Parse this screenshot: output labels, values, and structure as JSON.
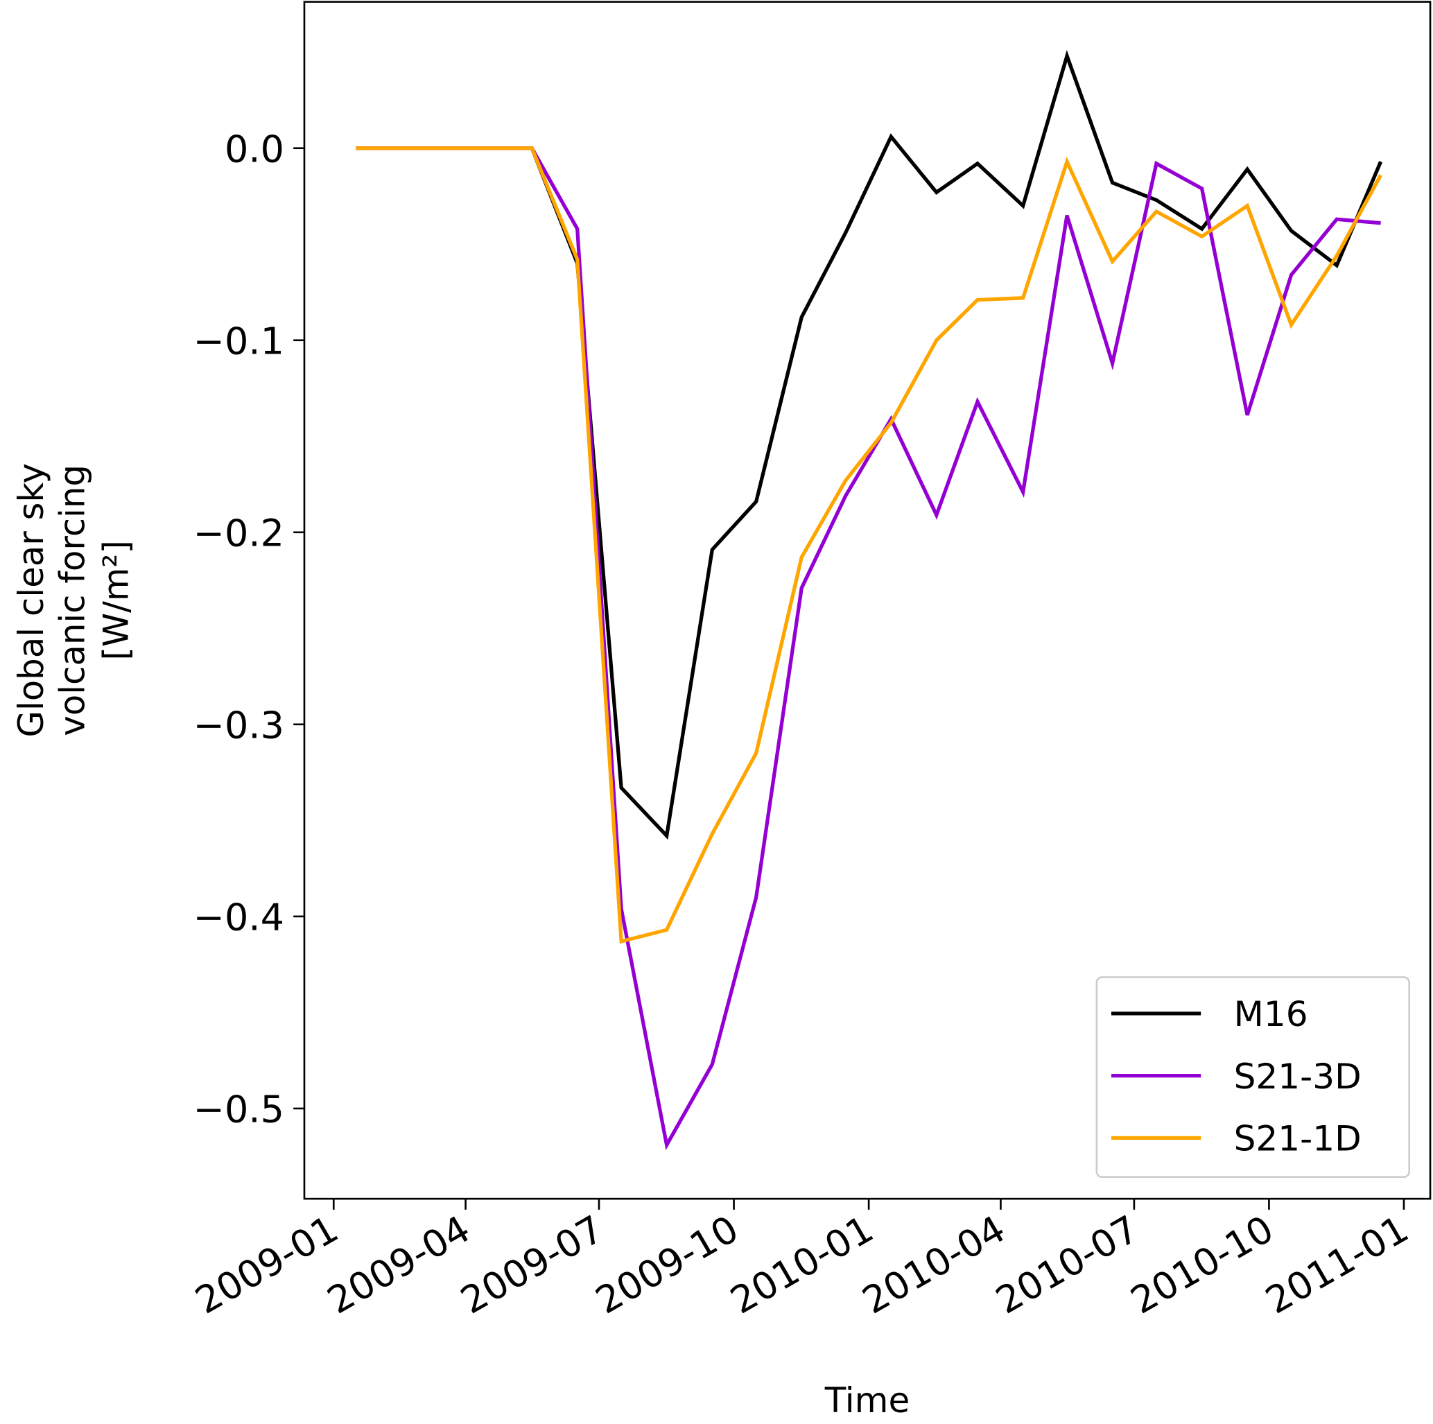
{
  "chart_data": {
    "type": "line",
    "xlabel": "Time",
    "ylabel": [
      "Global clear sky",
      "volcanic forcing",
      "[W/m²]"
    ],
    "x": [
      "2009-01",
      "2009-02",
      "2009-03",
      "2009-04",
      "2009-05",
      "2009-06",
      "2009-07",
      "2009-08",
      "2009-09",
      "2009-10",
      "2009-11",
      "2009-12",
      "2010-01",
      "2010-02",
      "2010-03",
      "2010-04",
      "2010-05",
      "2010-06",
      "2010-07",
      "2010-08",
      "2010-09",
      "2010-10",
      "2010-11",
      "2010-12"
    ],
    "series": [
      {
        "name": "M16",
        "color": "#000000",
        "values": [
          0,
          0,
          0,
          0,
          0,
          -0.06,
          -0.333,
          -0.358,
          -0.209,
          -0.184,
          -0.088,
          -0.044,
          0.006,
          -0.023,
          -0.008,
          -0.03,
          0.048,
          -0.018,
          -0.027,
          -0.042,
          -0.011,
          -0.043,
          -0.061,
          -0.007
        ]
      },
      {
        "name": "S21-3D",
        "color": "#9400d3",
        "values": [
          0,
          0,
          0,
          0,
          0,
          -0.042,
          -0.396,
          -0.519,
          -0.477,
          -0.39,
          -0.229,
          -0.181,
          -0.141,
          -0.191,
          -0.132,
          -0.179,
          -0.035,
          -0.112,
          -0.008,
          -0.021,
          -0.139,
          -0.066,
          -0.037,
          -0.039
        ]
      },
      {
        "name": "S21-1D",
        "color": "#ffa500",
        "values": [
          0,
          0,
          0,
          0,
          0,
          -0.058,
          -0.413,
          -0.407,
          -0.357,
          -0.315,
          -0.213,
          -0.173,
          -0.143,
          -0.1,
          -0.079,
          -0.078,
          -0.007,
          -0.059,
          -0.033,
          -0.046,
          -0.03,
          -0.092,
          -0.056,
          -0.014
        ]
      }
    ],
    "xlim": [
      "2008-12-12",
      "2011-01-19"
    ],
    "xticks": [
      "2009-01",
      "2009-04",
      "2009-07",
      "2009-10",
      "2010-01",
      "2010-04",
      "2010-07",
      "2010-10",
      "2011-01"
    ],
    "ylim": [
      -0.547,
      0.0762
    ],
    "yticks": [
      {
        "value": 0,
        "label": "0.0"
      },
      {
        "value": -0.1,
        "label": "−0.1"
      },
      {
        "value": -0.2,
        "label": "−0.2"
      },
      {
        "value": -0.3,
        "label": "−0.3"
      },
      {
        "value": -0.4,
        "label": "−0.4"
      },
      {
        "value": -0.5,
        "label": "−0.5"
      }
    ],
    "legend": "lower right"
  }
}
